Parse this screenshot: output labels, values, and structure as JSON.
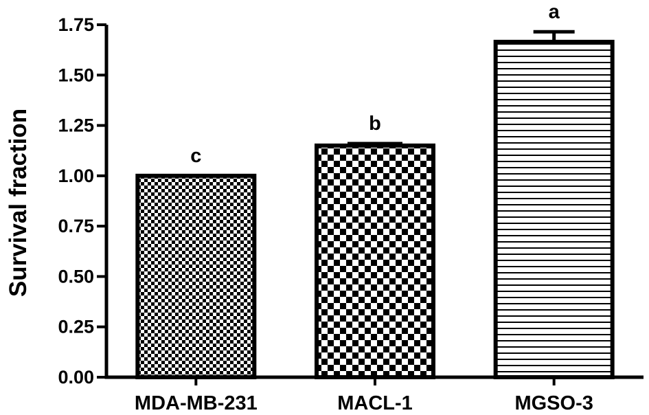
{
  "chart_data": {
    "type": "bar",
    "title": "",
    "xlabel": "",
    "ylabel": "Survival fraction",
    "ylim": [
      0,
      1.75
    ],
    "yticks": [
      "0.00",
      "0.25",
      "0.50",
      "0.75",
      "1.00",
      "1.25",
      "1.50",
      "1.75"
    ],
    "grid": false,
    "categories": [
      "MDA-MB-231",
      "MACL-1",
      "MGSO-3"
    ],
    "values": [
      1.0,
      1.15,
      1.665
    ],
    "errors": [
      0.0,
      0.01,
      0.05
    ],
    "significance_labels": [
      "c",
      "b",
      "a"
    ],
    "patterns": [
      "fine-checker",
      "coarse-checker",
      "horizontal-stripes"
    ],
    "colors": {
      "ink": "#000000",
      "background": "#ffffff"
    }
  }
}
